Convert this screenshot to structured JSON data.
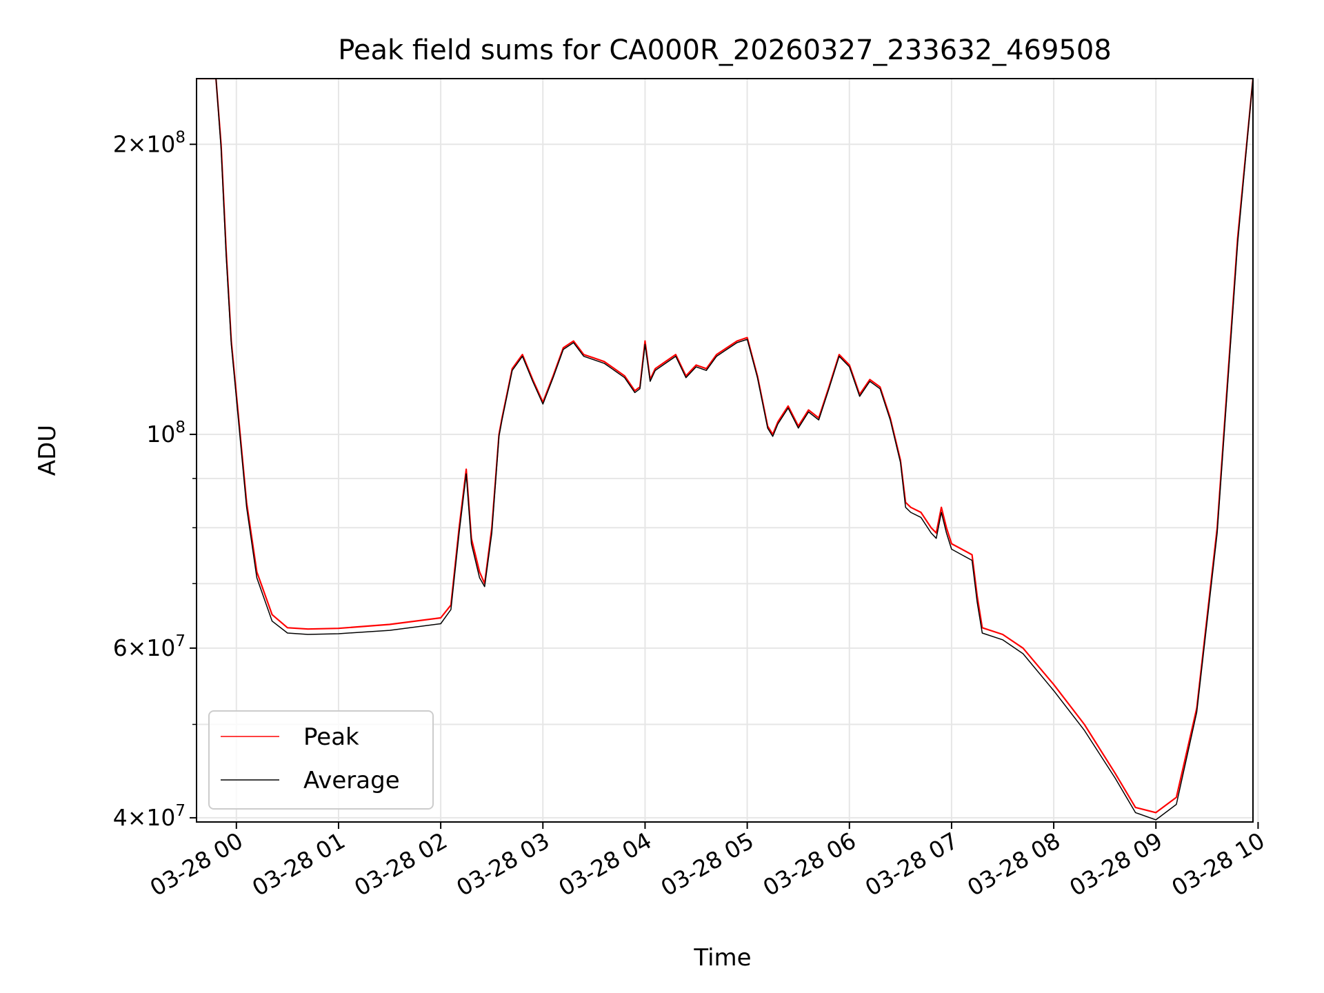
{
  "chart_data": {
    "type": "line",
    "title": "Peak field sums for CA000R_20260327_233632_469508",
    "xlabel": "Time",
    "ylabel": "ADU",
    "yscale": "log",
    "x_unit": "hours after 03-28 00:00",
    "xlim": [
      -0.39,
      9.95
    ],
    "ylim": [
      39600000,
      234000000
    ],
    "x_ticks": [
      {
        "value": 0,
        "label": "03-28 00"
      },
      {
        "value": 1,
        "label": "03-28 01"
      },
      {
        "value": 2,
        "label": "03-28 02"
      },
      {
        "value": 3,
        "label": "03-28 03"
      },
      {
        "value": 4,
        "label": "03-28 04"
      },
      {
        "value": 5,
        "label": "03-28 05"
      },
      {
        "value": 6,
        "label": "03-28 06"
      },
      {
        "value": 7,
        "label": "03-28 07"
      },
      {
        "value": 8,
        "label": "03-28 08"
      },
      {
        "value": 9,
        "label": "03-28 09"
      },
      {
        "value": 10,
        "label": "03-28 10"
      }
    ],
    "y_major_ticks": [
      {
        "value": 40000000,
        "mantissa": "4",
        "exp": "7"
      },
      {
        "value": 60000000,
        "mantissa": "6",
        "exp": "7"
      },
      {
        "value": 100000000,
        "mantissa": "",
        "exp": "8"
      },
      {
        "value": 200000000,
        "mantissa": "2",
        "exp": "8"
      }
    ],
    "y_minor_ticks": [
      50000000,
      70000000,
      80000000,
      90000000
    ],
    "grid": true,
    "legend": {
      "position": "bottom-left"
    },
    "series": [
      {
        "name": "Peak",
        "color": "#ff0000",
        "x": [
          -0.39,
          -0.2,
          -0.15,
          -0.1,
          -0.05,
          0.0,
          0.1,
          0.2,
          0.35,
          0.5,
          0.7,
          1.0,
          1.5,
          2.0,
          2.1,
          2.18,
          2.25,
          2.3,
          2.38,
          2.43,
          2.5,
          2.57,
          2.6,
          2.7,
          2.8,
          2.9,
          3.0,
          3.1,
          3.2,
          3.3,
          3.4,
          3.5,
          3.6,
          3.7,
          3.8,
          3.9,
          3.95,
          4.0,
          4.05,
          4.1,
          4.2,
          4.3,
          4.4,
          4.5,
          4.6,
          4.7,
          4.8,
          4.9,
          5.0,
          5.1,
          5.2,
          5.25,
          5.3,
          5.4,
          5.5,
          5.6,
          5.7,
          5.8,
          5.9,
          6.0,
          6.1,
          6.2,
          6.3,
          6.4,
          6.5,
          6.55,
          6.6,
          6.7,
          6.8,
          6.85,
          6.9,
          6.95,
          7.0,
          7.1,
          7.2,
          7.25,
          7.3,
          7.5,
          7.7,
          8.0,
          8.3,
          8.6,
          8.8,
          9.0,
          9.2,
          9.4,
          9.6,
          9.8,
          9.95
        ],
        "values": [
          234000000,
          234000000,
          200000000,
          155000000,
          125000000,
          110000000,
          85000000,
          72000000,
          65000000,
          63000000,
          62800000,
          62900000,
          63500000,
          64500000,
          66500000,
          80000000,
          92000000,
          78000000,
          72000000,
          70000000,
          80000000,
          100000000,
          104000000,
          117000000,
          121000000,
          114000000,
          108000000,
          115000000,
          123000000,
          125000000,
          121000000,
          120000000,
          119000000,
          117000000,
          115000000,
          111000000,
          112000000,
          125000000,
          114000000,
          117000000,
          119000000,
          121000000,
          115000000,
          118000000,
          117000000,
          121000000,
          123000000,
          125000000,
          126000000,
          115000000,
          102000000,
          100000000,
          103000000,
          107000000,
          102000000,
          106000000,
          104000000,
          112000000,
          121000000,
          118000000,
          110000000,
          114000000,
          112000000,
          104000000,
          94000000,
          85000000,
          84000000,
          83000000,
          80000000,
          79000000,
          84000000,
          80000000,
          77000000,
          76000000,
          75000000,
          68000000,
          63000000,
          62000000,
          60000000,
          55000000,
          50000000,
          44500000,
          41000000,
          40500000,
          42000000,
          52000000,
          80000000,
          160000000,
          234000000
        ]
      },
      {
        "name": "Average",
        "color": "#000000",
        "x": [
          -0.39,
          -0.2,
          -0.15,
          -0.1,
          -0.05,
          0.0,
          0.1,
          0.2,
          0.35,
          0.5,
          0.7,
          1.0,
          1.5,
          2.0,
          2.1,
          2.18,
          2.25,
          2.3,
          2.38,
          2.43,
          2.5,
          2.57,
          2.6,
          2.7,
          2.8,
          2.9,
          3.0,
          3.1,
          3.2,
          3.3,
          3.4,
          3.5,
          3.6,
          3.7,
          3.8,
          3.9,
          3.95,
          4.0,
          4.05,
          4.1,
          4.2,
          4.3,
          4.4,
          4.5,
          4.6,
          4.7,
          4.8,
          4.9,
          5.0,
          5.1,
          5.2,
          5.25,
          5.3,
          5.4,
          5.5,
          5.6,
          5.7,
          5.8,
          5.9,
          6.0,
          6.1,
          6.2,
          6.3,
          6.4,
          6.5,
          6.55,
          6.6,
          6.7,
          6.8,
          6.85,
          6.9,
          6.95,
          7.0,
          7.1,
          7.2,
          7.25,
          7.3,
          7.5,
          7.7,
          8.0,
          8.3,
          8.6,
          8.8,
          9.0,
          9.2,
          9.4,
          9.6,
          9.8,
          9.95
        ],
        "values": [
          234000000,
          234000000,
          198000000,
          153000000,
          124000000,
          109000000,
          84000000,
          71000000,
          64000000,
          62200000,
          62000000,
          62100000,
          62600000,
          63600000,
          65800000,
          79000000,
          91000000,
          77000000,
          71000000,
          69500000,
          79000000,
          99500000,
          103500000,
          116500000,
          120500000,
          113500000,
          107500000,
          114500000,
          122500000,
          124500000,
          120500000,
          119500000,
          118500000,
          116500000,
          114500000,
          110500000,
          111500000,
          124000000,
          113500000,
          116500000,
          118500000,
          120500000,
          114500000,
          117500000,
          116500000,
          120500000,
          122500000,
          124500000,
          125500000,
          114500000,
          101500000,
          99500000,
          102500000,
          106500000,
          101500000,
          105500000,
          103500000,
          111500000,
          120500000,
          117500000,
          109500000,
          113500000,
          111500000,
          103500000,
          93500000,
          84000000,
          83000000,
          82000000,
          79000000,
          78000000,
          83000000,
          79000000,
          76000000,
          75000000,
          74000000,
          67000000,
          62200000,
          61200000,
          59200000,
          54200000,
          49300000,
          44000000,
          40500000,
          39800000,
          41300000,
          51500000,
          79000000,
          158000000,
          234000000
        ]
      }
    ]
  }
}
